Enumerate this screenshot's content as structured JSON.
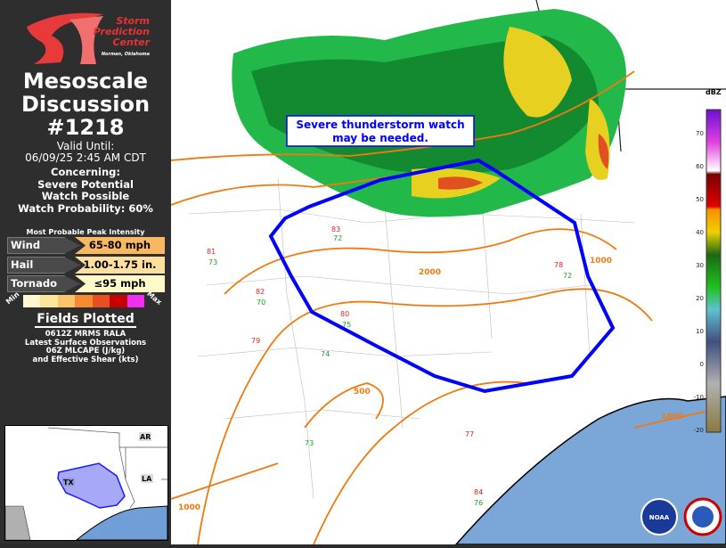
{
  "logo": {
    "line1": "Storm",
    "line2": "Prediction",
    "line3": "Center",
    "line4": "Norman, Oklahoma"
  },
  "header": {
    "title_line1": "Mesoscale",
    "title_line2": "Discussion",
    "md_number": "#1218"
  },
  "valid": {
    "label": "Valid Until:",
    "time": "06/09/25 2:45 AM CDT"
  },
  "concerning": {
    "label": "Concerning:",
    "line1": "Severe Potential",
    "line2": "Watch Possible",
    "probability": "Watch Probability: 60%"
  },
  "peak": {
    "header": "Most Probable Peak Intensity",
    "rows": [
      {
        "label": "Wind",
        "value": "65-80 mph",
        "color": "#f8b860"
      },
      {
        "label": "Hail",
        "value": "1.00-1.75 in.",
        "color": "#fde0a0"
      },
      {
        "label": "Tornado",
        "value": "≤95 mph",
        "color": "#fffac8"
      }
    ],
    "scale_min": "Min",
    "scale_max": "Max",
    "scale_colors": [
      "#fff8d0",
      "#fde69a",
      "#fbc46c",
      "#f58a30",
      "#e85020",
      "#c80000",
      "#f030f0"
    ]
  },
  "fields": {
    "header": "Fields Plotted",
    "line1": "0612Z MRMS RALA",
    "line2": "Latest Surface Observations",
    "line3": "06Z MLCAPE (J/kg)",
    "line4": "and Effective Shear (kts)"
  },
  "inset": {
    "labels": [
      "AR",
      "LA",
      "TX"
    ],
    "area_color": "#a8a8f8",
    "outline_color": "#1a1aff"
  },
  "map": {
    "annotation_line1": "Severe thunderstorm watch",
    "annotation_line2": "may be needed.",
    "polygon_color": "#0000ff",
    "cape_color": "#f07a10",
    "water_color": "#7aa6d8",
    "cape_labels": [
      "2000",
      "1000",
      "500",
      "1000",
      "1000"
    ],
    "colorbar_title": "dBZ",
    "colorbar_ticks": [
      "70",
      "60",
      "50",
      "40",
      "30",
      "20",
      "10",
      "0",
      "-10",
      "-20"
    ],
    "stations": [
      {
        "t": "83",
        "c": "#e02020"
      },
      {
        "t": "72",
        "c": "#20a020"
      },
      {
        "t": "81",
        "c": "#e02020"
      },
      {
        "t": "73",
        "c": "#20a020"
      },
      {
        "t": "82",
        "c": "#e02020"
      },
      {
        "t": "70",
        "c": "#20a020"
      },
      {
        "t": "80",
        "c": "#e02020"
      },
      {
        "t": "75",
        "c": "#20a020"
      },
      {
        "t": "79",
        "c": "#e02020"
      },
      {
        "t": "74",
        "c": "#20a020"
      },
      {
        "t": "84",
        "c": "#e02020"
      },
      {
        "t": "76",
        "c": "#20a020"
      },
      {
        "t": "77",
        "c": "#e02020"
      },
      {
        "t": "73",
        "c": "#20a020"
      },
      {
        "t": "78",
        "c": "#e02020"
      },
      {
        "t": "72",
        "c": "#20a020"
      }
    ]
  }
}
